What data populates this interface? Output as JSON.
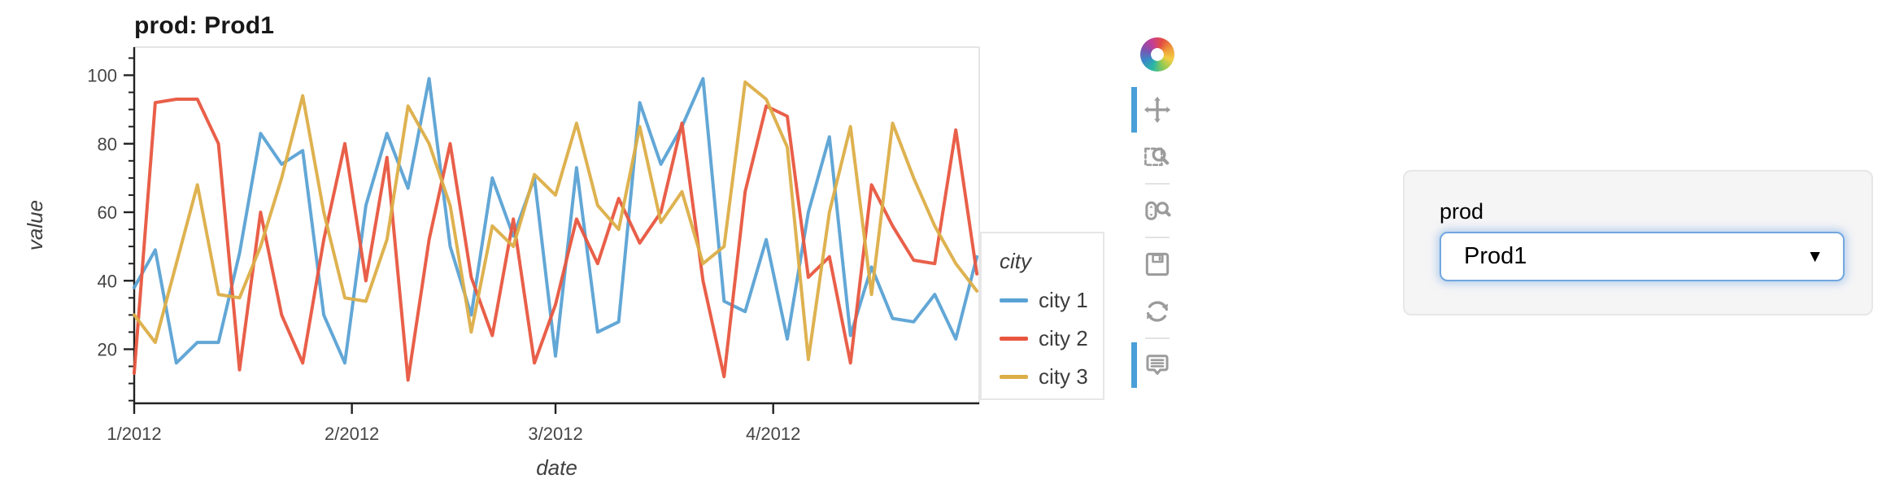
{
  "chart": {
    "title": "prod: Prod1",
    "xlabel": "date",
    "ylabel": "value",
    "legend": {
      "title": "city"
    }
  },
  "chart_data": {
    "type": "line",
    "title": "prod: Prod1",
    "xlabel": "date",
    "ylabel": "value",
    "grid": "off",
    "legend_position": "right",
    "legend_title": "city",
    "ylim": [
      4,
      108
    ],
    "y_ticks": [
      20,
      40,
      60,
      80,
      100
    ],
    "x_tick_positions": [
      "2012-01-01",
      "2012-02-01",
      "2012-03-01",
      "2012-04-01"
    ],
    "x_tick_labels": [
      "1/2012",
      "2/2012",
      "3/2012",
      "4/2012"
    ],
    "x": [
      "2012-01-01",
      "2012-01-04",
      "2012-01-07",
      "2012-01-10",
      "2012-01-13",
      "2012-01-16",
      "2012-01-19",
      "2012-01-22",
      "2012-01-25",
      "2012-01-28",
      "2012-01-31",
      "2012-02-03",
      "2012-02-06",
      "2012-02-09",
      "2012-02-12",
      "2012-02-15",
      "2012-02-18",
      "2012-02-21",
      "2012-02-24",
      "2012-02-27",
      "2012-03-01",
      "2012-03-04",
      "2012-03-07",
      "2012-03-10",
      "2012-03-13",
      "2012-03-16",
      "2012-03-19",
      "2012-03-22",
      "2012-03-25",
      "2012-03-28",
      "2012-03-31",
      "2012-04-03",
      "2012-04-06",
      "2012-04-09",
      "2012-04-12",
      "2012-04-15",
      "2012-04-18",
      "2012-04-21",
      "2012-04-24",
      "2012-04-27",
      "2012-04-30"
    ],
    "series": [
      {
        "name": "city 1",
        "color": "#5aa2d4",
        "values": [
          38,
          49,
          16,
          22,
          22,
          48,
          83,
          74,
          78,
          30,
          16,
          62,
          83,
          67,
          99,
          50,
          30,
          70,
          53,
          70,
          18,
          73,
          25,
          28,
          92,
          74,
          85,
          99,
          34,
          31,
          52,
          23,
          60,
          82,
          24,
          44,
          29,
          28,
          36,
          23,
          47
        ]
      },
      {
        "name": "city 2",
        "color": "#e8563f",
        "values": [
          13,
          92,
          93,
          93,
          80,
          14,
          60,
          30,
          16,
          52,
          80,
          40,
          76,
          11,
          52,
          80,
          41,
          24,
          58,
          16,
          33,
          58,
          45,
          64,
          51,
          60,
          86,
          40,
          12,
          66,
          91,
          88,
          41,
          47,
          16,
          68,
          56,
          46,
          45,
          84,
          42
        ]
      },
      {
        "name": "city 3",
        "color": "#dcae47",
        "values": [
          30,
          22,
          45,
          68,
          36,
          35,
          50,
          70,
          94,
          60,
          35,
          34,
          52,
          91,
          80,
          62,
          25,
          56,
          50,
          71,
          65,
          86,
          62,
          55,
          85,
          57,
          66,
          45,
          50,
          98,
          93,
          79,
          17,
          60,
          85,
          36,
          86,
          70,
          56,
          45,
          37
        ]
      }
    ]
  },
  "toolbar": {
    "tools": [
      {
        "name": "pan",
        "active": true
      },
      {
        "name": "box-zoom",
        "active": false
      },
      {
        "name": "wheel-zoom",
        "active": false
      },
      {
        "name": "save",
        "active": false
      },
      {
        "name": "reset",
        "active": false
      },
      {
        "name": "hover",
        "active": true
      }
    ]
  },
  "widget": {
    "label": "prod",
    "value": "Prod1"
  },
  "colors": {
    "active_tool_bar": "#4a9fd8",
    "axis_line": "#222222",
    "frame_outline": "#e5e5e5",
    "tick_text": "#454545",
    "select_border": "#72a7df"
  }
}
